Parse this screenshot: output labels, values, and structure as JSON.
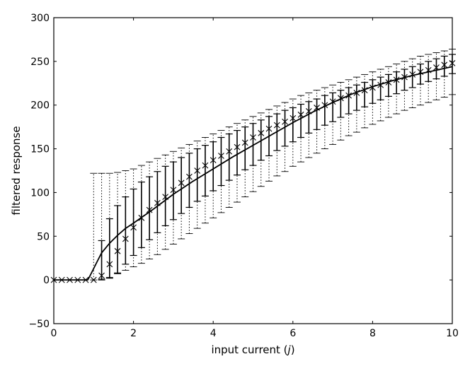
{
  "chart_data": {
    "type": "line",
    "title": "",
    "xlabel_prefix": "input current (",
    "xlabel_var": "j",
    "xlabel_suffix": ")",
    "ylabel": "filtered response",
    "xlim": [
      0,
      10
    ],
    "ylim": [
      -50,
      300
    ],
    "xticks": [
      0,
      2,
      4,
      6,
      8,
      10
    ],
    "yticks": [
      -50,
      0,
      50,
      100,
      150,
      200,
      250,
      300
    ],
    "grid": false,
    "legend": "none",
    "series": [
      {
        "kind": "line",
        "style": "solid",
        "color": "#000000",
        "x": [
          0,
          0.2,
          0.4,
          0.6,
          0.8,
          0.85,
          0.9,
          1.0,
          1.1,
          1.2,
          1.4,
          1.6,
          1.8,
          2.0,
          2.5,
          3.0,
          3.5,
          4.0,
          4.5,
          5.0,
          5.5,
          6.0,
          6.5,
          7.0,
          7.5,
          8.0,
          8.5,
          9.0,
          9.5,
          10.0
        ],
        "y": [
          0,
          0,
          0,
          0,
          0,
          0,
          4,
          13,
          22,
          31,
          42,
          51,
          59,
          65,
          81,
          98,
          113,
          127,
          141,
          154,
          167,
          180,
          192,
          203,
          213,
          221,
          228,
          234,
          239,
          244
        ]
      },
      {
        "kind": "marker",
        "marker": "x",
        "color": "#000000",
        "x": [
          0,
          0.2,
          0.4,
          0.6,
          0.8,
          1.0,
          1.2,
          1.4,
          1.6,
          1.8,
          2.0,
          2.2,
          2.4,
          2.6,
          2.8,
          3.0,
          3.2,
          3.4,
          3.6,
          3.8,
          4.0,
          4.2,
          4.4,
          4.6,
          4.8,
          5.0,
          5.2,
          5.4,
          5.6,
          5.8,
          6.0,
          6.2,
          6.4,
          6.6,
          6.8,
          7.0,
          7.2,
          7.4,
          7.6,
          7.8,
          8.0,
          8.2,
          8.4,
          8.6,
          8.8,
          9.0,
          9.2,
          9.4,
          9.6,
          9.8,
          10.0
        ],
        "y": [
          0,
          0,
          0,
          0,
          0,
          0,
          5,
          18,
          33,
          47,
          60,
          71,
          80,
          88,
          95,
          103,
          111,
          118,
          125,
          131,
          137,
          142,
          147,
          152,
          157,
          163,
          168,
          173,
          177,
          181,
          185,
          189,
          193,
          197,
          200,
          204,
          208,
          211,
          214,
          217,
          220,
          223,
          226,
          229,
          232,
          235,
          238,
          240,
          243,
          246,
          248
        ]
      }
    ],
    "errorbars_solid": {
      "x": [
        1.2,
        1.4,
        1.6,
        1.8,
        2.0,
        2.2,
        2.4,
        2.6,
        2.8,
        3.0,
        3.2,
        3.4,
        3.6,
        3.8,
        4.0,
        4.2,
        4.4,
        4.6,
        4.8,
        5.0,
        5.2,
        5.4,
        5.6,
        5.8,
        6.0,
        6.2,
        6.4,
        6.6,
        6.8,
        7.0,
        7.2,
        7.4,
        7.6,
        7.8,
        8.0,
        8.2,
        8.4,
        8.6,
        8.8,
        9.0,
        9.2,
        9.4,
        9.6,
        9.8,
        10.0
      ],
      "low": [
        0,
        2,
        8,
        18,
        28,
        37,
        46,
        54,
        62,
        69,
        76,
        83,
        90,
        96,
        102,
        108,
        114,
        120,
        126,
        131,
        137,
        142,
        148,
        153,
        158,
        163,
        168,
        172,
        177,
        181,
        186,
        190,
        194,
        198,
        202,
        206,
        210,
        213,
        217,
        220,
        224,
        227,
        230,
        233,
        236
      ],
      "high": [
        45,
        70,
        85,
        95,
        104,
        112,
        118,
        124,
        130,
        135,
        140,
        145,
        150,
        154,
        158,
        163,
        167,
        171,
        175,
        179,
        183,
        187,
        190,
        194,
        197,
        201,
        204,
        207,
        211,
        214,
        217,
        220,
        223,
        226,
        229,
        232,
        235,
        238,
        241,
        244,
        247,
        250,
        253,
        256,
        258
      ]
    },
    "errorbars_dotted": {
      "x": [
        1.0,
        1.2,
        1.4,
        1.6,
        1.8,
        2.0,
        2.2,
        2.4,
        2.6,
        2.8,
        3.0,
        3.2,
        3.4,
        3.6,
        3.8,
        4.0,
        4.2,
        4.4,
        4.6,
        4.8,
        5.0,
        5.2,
        5.4,
        5.6,
        5.8,
        6.0,
        6.2,
        6.4,
        6.6,
        6.8,
        7.0,
        7.2,
        7.4,
        7.6,
        7.8,
        8.0,
        8.2,
        8.4,
        8.6,
        8.8,
        9.0,
        9.2,
        9.4,
        9.6,
        9.8,
        10.0
      ],
      "low": [
        0,
        1,
        3,
        7,
        11,
        15,
        19,
        24,
        29,
        35,
        41,
        47,
        53,
        59,
        65,
        71,
        77,
        83,
        89,
        95,
        101,
        107,
        113,
        119,
        124,
        130,
        135,
        140,
        145,
        150,
        155,
        160,
        165,
        169,
        174,
        178,
        182,
        186,
        190,
        194,
        197,
        200,
        203,
        206,
        209,
        212
      ],
      "high": [
        122,
        122,
        122,
        123,
        125,
        127,
        131,
        135,
        139,
        143,
        147,
        151,
        155,
        159,
        163,
        167,
        171,
        175,
        179,
        183,
        187,
        191,
        195,
        199,
        203,
        207,
        211,
        214,
        217,
        220,
        223,
        226,
        229,
        232,
        235,
        238,
        241,
        244,
        247,
        250,
        253,
        256,
        258,
        260,
        262,
        264
      ]
    }
  }
}
